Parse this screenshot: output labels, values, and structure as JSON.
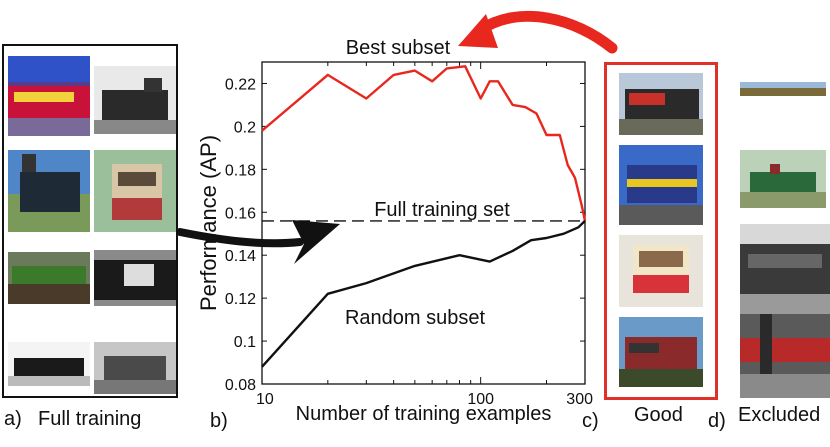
{
  "panels": {
    "a_letter": "a)",
    "a_caption": "Full training",
    "b_letter": "b)",
    "c_letter": "c)",
    "c_caption": "Good",
    "d_letter": "d)",
    "d_caption": "Excluded"
  },
  "chart_data": {
    "type": "line",
    "xscale": "log",
    "xlim": [
      10,
      300
    ],
    "ylim": [
      0.08,
      0.23
    ],
    "xticks": [
      10,
      100,
      300
    ],
    "xtick_labels": [
      "10",
      "100",
      "300"
    ],
    "yticks": [
      0.08,
      0.1,
      0.12,
      0.14,
      0.16,
      0.18,
      0.2,
      0.22
    ],
    "ytick_labels": [
      "0.08",
      "0.1",
      "0.12",
      "0.14",
      "0.16",
      "0.18",
      "0.2",
      "0.22"
    ],
    "xlabel": "Number of training examples",
    "ylabel": "Performance (AP)",
    "grid": false,
    "series": [
      {
        "name": "Best subset",
        "color": "#e8281e",
        "x": [
          10,
          20,
          30,
          40,
          50,
          60,
          70,
          85,
          100,
          110,
          120,
          140,
          160,
          180,
          200,
          230,
          250,
          270,
          290,
          300
        ],
        "y": [
          0.198,
          0.224,
          0.213,
          0.224,
          0.226,
          0.221,
          0.227,
          0.228,
          0.213,
          0.221,
          0.221,
          0.21,
          0.209,
          0.206,
          0.196,
          0.196,
          0.182,
          0.176,
          0.163,
          0.156
        ]
      },
      {
        "name": "Random subset",
        "color": "#111111",
        "x": [
          10,
          20,
          30,
          50,
          80,
          110,
          140,
          170,
          200,
          240,
          280,
          300
        ],
        "y": [
          0.088,
          0.122,
          0.127,
          0.135,
          0.14,
          0.137,
          0.142,
          0.147,
          0.148,
          0.15,
          0.153,
          0.156
        ]
      },
      {
        "name": "Full training set",
        "color": "#111111",
        "dashed": true,
        "x": [
          10,
          300
        ],
        "y": [
          0.156,
          0.156
        ]
      }
    ],
    "series_labels": [
      "Best subset",
      "Full training set",
      "Random subset"
    ]
  },
  "images": {
    "full_training": [
      "train-photo-1",
      "train-photo-2",
      "train-photo-3",
      "train-photo-4",
      "train-photo-5",
      "train-photo-6",
      "train-photo-7",
      "train-photo-8"
    ],
    "good": [
      "good-train-photo-1",
      "good-train-photo-2",
      "good-train-photo-3",
      "good-train-photo-4"
    ],
    "excluded": [
      "excluded-train-photo-1",
      "excluded-train-photo-2",
      "excluded-train-photo-3",
      "excluded-train-photo-4"
    ]
  }
}
